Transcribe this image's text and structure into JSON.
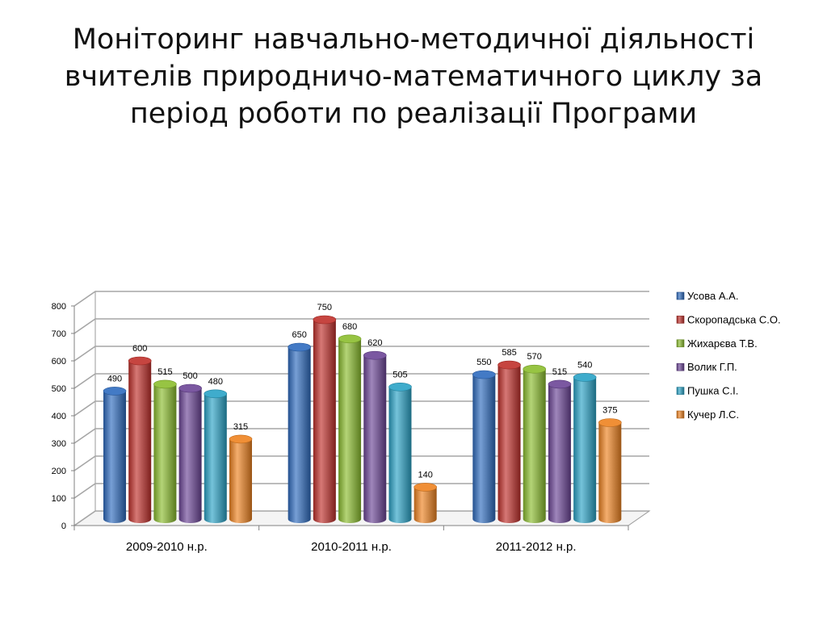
{
  "title_lines": [
    "Моніторинг навчально-методичної діяльності",
    "вчителів природничо-математичного циклу за",
    "період роботи по реалізації Програми"
  ],
  "chart_data": {
    "type": "bar",
    "categories": [
      "2009-2010 н.р.",
      "2010-2011 н.р.",
      "2011-2012 н.р."
    ],
    "series": [
      {
        "name": "Усова А.А.",
        "values": [
          490,
          650,
          550
        ],
        "color": "#2e6bbf"
      },
      {
        "name": "Скоропадська С.О.",
        "values": [
          600,
          750,
          585
        ],
        "color": "#c0302b"
      },
      {
        "name": "Жихарєва Т.В.",
        "values": [
          515,
          680,
          570
        ],
        "color": "#8bbd2e"
      },
      {
        "name": "Волик Г.П.",
        "values": [
          500,
          620,
          515
        ],
        "color": "#6c4596"
      },
      {
        "name": "Пушка С.І.",
        "values": [
          480,
          505,
          540
        ],
        "color": "#2aa3c6"
      },
      {
        "name": "Кучер Л.С.",
        "values": [
          315,
          140,
          375
        ],
        "color": "#ee8320"
      }
    ],
    "ylim": [
      0,
      800
    ],
    "yticks": [
      0,
      100,
      200,
      300,
      400,
      500,
      600,
      700,
      800
    ],
    "grid": true,
    "legend": "right",
    "xlabel": "",
    "ylabel": ""
  }
}
